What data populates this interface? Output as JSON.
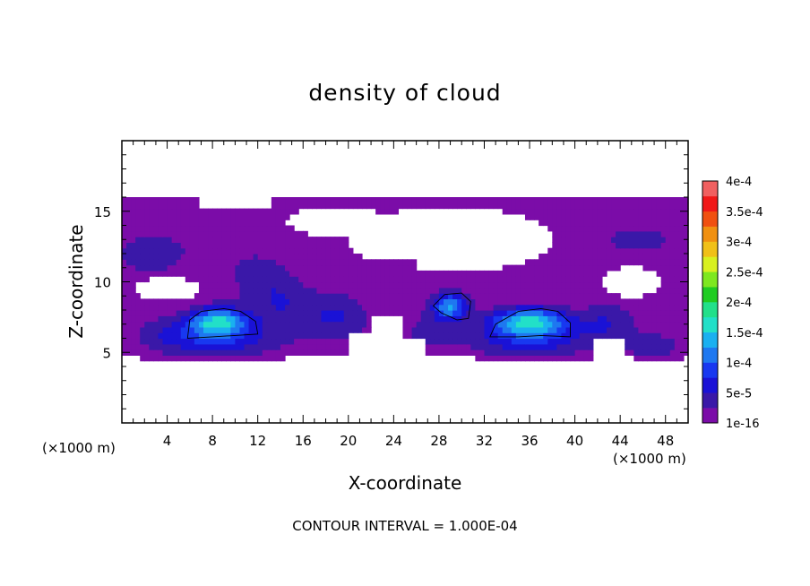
{
  "chart_data": {
    "type": "heatmap",
    "title": "density of cloud",
    "xlabel": "X-coordinate",
    "ylabel": "Z-coordinate",
    "x_unit": "(×1000 m)",
    "y_unit": "(×1000 m)",
    "xlim": [
      0,
      50
    ],
    "ylim": [
      0,
      20
    ],
    "x_ticks": [
      4,
      8,
      12,
      16,
      20,
      24,
      28,
      32,
      36,
      40,
      44,
      48
    ],
    "y_ticks": [
      5,
      10,
      15
    ],
    "footer": "CONTOUR INTERVAL = 1.000E-04",
    "colorbar": {
      "labels": [
        "1e-16",
        "5e-5",
        "1e-4",
        "1.5e-4",
        "2e-4",
        "2.5e-4",
        "3e-4",
        "3.5e-4",
        "4e-4"
      ],
      "levels": [
        1e-16,
        2.5e-05,
        5e-05,
        7.5e-05,
        0.0001,
        0.000125,
        0.00015,
        0.000175,
        0.0002,
        0.000225,
        0.00025,
        0.000275,
        0.0003,
        0.000325,
        0.00035,
        0.000375,
        0.0004
      ],
      "colors": [
        "#7b0ca8",
        "#3a18a8",
        "#1a12d6",
        "#1838f0",
        "#1e78f0",
        "#1ab0f0",
        "#22e0c8",
        "#22e08a",
        "#20cc22",
        "#7ee820",
        "#d8f020",
        "#f0c018",
        "#f09010",
        "#f05010",
        "#f01818",
        "#f06060"
      ]
    },
    "contour_lines": [
      0.0001
    ]
  }
}
